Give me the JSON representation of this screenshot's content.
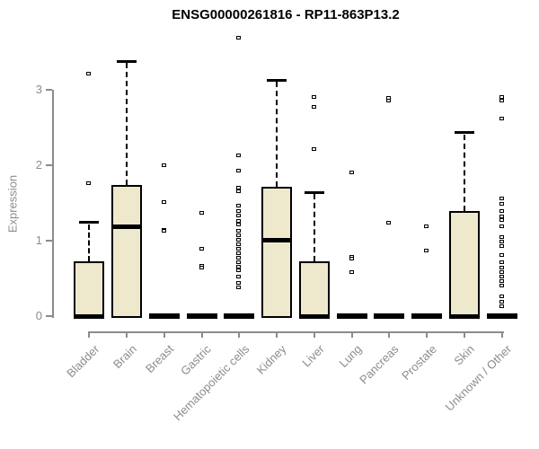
{
  "chart_data": {
    "type": "boxplot",
    "title": "ENSG00000261816 - RP11-863P13.2",
    "ylabel": "Expression",
    "xlabel": "",
    "ylim": [
      0,
      3.75
    ],
    "yticks": [
      0,
      1,
      2,
      3
    ],
    "grid": false,
    "legend": "none",
    "categories": [
      "Bladder",
      "Brain",
      "Breast",
      "Gastric",
      "Hematopoietic cells",
      "Kidney",
      "Liver",
      "Lung",
      "Pancreas",
      "Prostate",
      "Skin",
      "Unknown / Other"
    ],
    "series": [
      {
        "name": "Bladder",
        "q1": 0,
        "median": 0,
        "q3": 0.7,
        "whisker_low": 0,
        "whisker_high": 1.24,
        "outliers": [
          1.76,
          3.21
        ]
      },
      {
        "name": "Brain",
        "q1": 0,
        "median": 1.18,
        "q3": 1.71,
        "whisker_low": 0,
        "whisker_high": 3.38,
        "outliers": []
      },
      {
        "name": "Breast",
        "q1": 0,
        "median": 0,
        "q3": 0,
        "whisker_low": 0,
        "whisker_high": 0,
        "outliers": [
          2.0,
          1.51,
          1.14,
          1.12
        ]
      },
      {
        "name": "Gastric",
        "q1": 0,
        "median": 0,
        "q3": 0,
        "whisker_low": 0,
        "whisker_high": 0,
        "outliers": [
          1.36,
          0.89,
          0.66,
          0.64
        ]
      },
      {
        "name": "Hematopoietic cells",
        "q1": 0,
        "median": 0,
        "q3": 0,
        "whisker_low": 0,
        "whisker_high": 0,
        "outliers": [
          3.68,
          2.12,
          1.92,
          1.7,
          1.65,
          1.46,
          1.39,
          1.33,
          1.26,
          1.21,
          1.13,
          1.07,
          1.01,
          0.95,
          0.89,
          0.83,
          0.77,
          0.71,
          0.65,
          0.6,
          0.52,
          0.44,
          0.38
        ]
      },
      {
        "name": "Kidney",
        "q1": 0,
        "median": 1.01,
        "q3": 1.69,
        "whisker_low": 0,
        "whisker_high": 3.13,
        "outliers": []
      },
      {
        "name": "Liver",
        "q1": 0,
        "median": 0,
        "q3": 0.7,
        "whisker_low": 0,
        "whisker_high": 1.64,
        "outliers": [
          2.9,
          2.77,
          2.21
        ]
      },
      {
        "name": "Lung",
        "q1": 0,
        "median": 0,
        "q3": 0,
        "whisker_low": 0,
        "whisker_high": 0,
        "outliers": [
          1.9,
          0.78,
          0.76,
          0.58
        ]
      },
      {
        "name": "Pancreas",
        "q1": 0,
        "median": 0,
        "q3": 0,
        "whisker_low": 0,
        "whisker_high": 0,
        "outliers": [
          2.89,
          2.85,
          1.23
        ]
      },
      {
        "name": "Prostate",
        "q1": 0,
        "median": 0,
        "q3": 0,
        "whisker_low": 0,
        "whisker_high": 0,
        "outliers": [
          1.18,
          0.86
        ]
      },
      {
        "name": "Skin",
        "q1": 0,
        "median": 0,
        "q3": 1.37,
        "whisker_low": 0,
        "whisker_high": 2.43,
        "outliers": []
      },
      {
        "name": "Unknown / Other",
        "q1": 0,
        "median": 0,
        "q3": 0,
        "whisker_low": 0,
        "whisker_high": 0,
        "outliers": [
          2.9,
          2.85,
          2.61,
          1.55,
          1.48,
          1.39,
          1.31,
          1.27,
          1.18,
          1.04,
          0.98,
          0.92,
          0.8,
          0.71,
          0.64,
          0.58,
          0.52,
          0.46,
          0.4,
          0.26,
          0.19,
          0.12
        ]
      }
    ],
    "colors": {
      "box_fill": "#EEE8CD",
      "box_border": "#000000",
      "median": "#000000",
      "axis": "#8C8C8C",
      "tick_text": "#8C8C8C",
      "title_text": "#000000",
      "background": "#FFFFFF"
    }
  }
}
